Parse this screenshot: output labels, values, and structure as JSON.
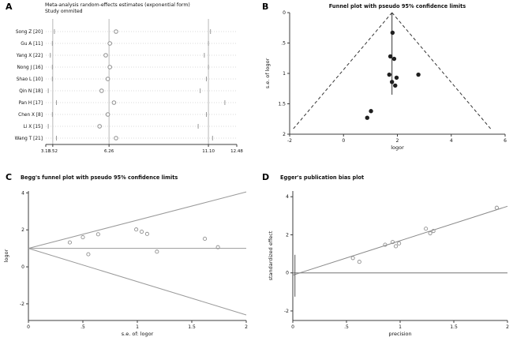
{
  "figure": {
    "background": "#ffffff",
    "axis_color": "#3c3c3c",
    "grid_gray": "#cfcfcf",
    "line_gray": "#9a9a9a"
  },
  "chart_data": [
    {
      "panel": "A",
      "type": "dotci",
      "title": "Meta-analysis random-effects estimates (exponential form)",
      "subtitle": "Study ommited",
      "categories": [
        "Song Z [20]",
        "Gu A [11]",
        "Yang X [22]",
        "Nong J [16]",
        "Shao L [10]",
        "Qin N [18]",
        "Pan H [17]",
        "Chen X [8]",
        "Li X [15]",
        "Wang T [21]"
      ],
      "estimates": [
        6.6,
        6.3,
        6.1,
        6.3,
        6.2,
        5.9,
        6.5,
        6.2,
        5.8,
        6.6
      ],
      "ci_low": [
        3.6,
        3.5,
        3.4,
        3.5,
        3.5,
        3.3,
        3.7,
        3.5,
        3.3,
        3.7
      ],
      "ci_high": [
        11.2,
        11.1,
        10.9,
        11.1,
        11.0,
        10.7,
        11.9,
        11.0,
        10.6,
        11.3
      ],
      "xlim": [
        3.18,
        12.48
      ],
      "xticks": {
        "values": [
          3.18,
          3.52,
          6.26,
          11.1,
          12.48
        ],
        "labels": [
          "3.18",
          "3.52",
          "6.26",
          "11.10",
          "12.48"
        ]
      },
      "ref_lines": [
        3.52,
        6.26,
        11.1
      ]
    },
    {
      "panel": "B",
      "type": "scatter",
      "title": "Funnel plot with pseudo 95% confidence limits",
      "xlabel": "logor",
      "ylabel": "s.e. of logor",
      "xlim": [
        -2,
        6
      ],
      "ylim": [
        0,
        2
      ],
      "xticks": {
        "values": [
          -2,
          0,
          2,
          4,
          6
        ],
        "labels": [
          "-2",
          "0",
          "2",
          "4",
          "6"
        ]
      },
      "yticks": {
        "values": [
          0,
          0.5,
          1,
          1.5,
          2
        ],
        "labels": [
          "0",
          ".5",
          "1",
          "1.5",
          "2"
        ]
      },
      "marker": "filled",
      "marker_r": 2.7,
      "marker_color": "#1f1f1f",
      "points": [
        [
          1.82,
          0.33
        ],
        [
          1.74,
          0.72
        ],
        [
          1.88,
          0.76
        ],
        [
          1.7,
          1.02
        ],
        [
          1.97,
          1.07
        ],
        [
          2.78,
          1.02
        ],
        [
          1.8,
          1.14
        ],
        [
          1.92,
          1.2
        ],
        [
          1.02,
          1.62
        ],
        [
          0.88,
          1.73
        ]
      ],
      "lines": [
        {
          "x1": 1.8,
          "y1": 0,
          "x2": -1.9,
          "y2": 1.93,
          "dash": "4,3",
          "color": "#333333",
          "w": 1
        },
        {
          "x1": 1.8,
          "y1": 0,
          "x2": 5.5,
          "y2": 1.93,
          "dash": "4,3",
          "color": "#333333",
          "w": 1
        },
        {
          "x1": 1.8,
          "y1": 0,
          "x2": 1.8,
          "y2": 1.35,
          "color": "#333333",
          "w": 1
        }
      ]
    },
    {
      "panel": "C",
      "type": "scatter",
      "title": "Begg's funnel plot with pseudo 95% confidence limits",
      "xlabel": "s.e. of: logor",
      "ylabel": "logor",
      "xlim": [
        0,
        2
      ],
      "ylim": [
        4.1,
        -2.9
      ],
      "xticks": {
        "values": [
          0,
          0.5,
          1,
          1.5,
          2
        ],
        "labels": [
          "0",
          ".5",
          "1",
          "1.5",
          "2"
        ]
      },
      "yticks": {
        "values": [
          4,
          2,
          0,
          -2
        ],
        "labels": [
          "4",
          "2",
          "0",
          "-2"
        ]
      },
      "marker": "open",
      "marker_r": 2.1,
      "marker_color": "#8f8f8f",
      "points": [
        [
          0.38,
          1.32
        ],
        [
          0.5,
          1.6
        ],
        [
          0.55,
          0.68
        ],
        [
          0.64,
          1.76
        ],
        [
          0.99,
          2.02
        ],
        [
          1.04,
          1.9
        ],
        [
          1.09,
          1.78
        ],
        [
          1.18,
          0.82
        ],
        [
          1.62,
          1.52
        ],
        [
          1.74,
          1.06
        ]
      ],
      "lines": [
        {
          "x1": 0,
          "y1": 1.0,
          "x2": 2,
          "y2": 1.0,
          "color": "#9a9a9a",
          "w": 1
        },
        {
          "x1": 0,
          "y1": 1.0,
          "x2": 2,
          "y2": 4.05,
          "color": "#9a9a9a",
          "w": 1
        },
        {
          "x1": 0,
          "y1": 1.0,
          "x2": 2,
          "y2": -2.6,
          "color": "#9a9a9a",
          "w": 1
        }
      ]
    },
    {
      "panel": "D",
      "type": "scatter",
      "title": "Egger's publication bias plot",
      "xlabel": "precision",
      "ylabel": "standardized effect",
      "xlim": [
        0,
        2
      ],
      "ylim": [
        4.3,
        -2.5
      ],
      "xticks": {
        "values": [
          0,
          0.5,
          1,
          1.5,
          2
        ],
        "labels": [
          "0",
          ".5",
          "1",
          "1.5",
          "2"
        ]
      },
      "yticks": {
        "values": [
          4,
          2,
          0,
          -2
        ],
        "labels": [
          "4",
          "2",
          "0",
          "-2"
        ]
      },
      "marker": "open",
      "marker_r": 2.1,
      "marker_color": "#8f8f8f",
      "points": [
        [
          0.56,
          0.78
        ],
        [
          0.62,
          0.58
        ],
        [
          0.86,
          1.48
        ],
        [
          0.93,
          1.62
        ],
        [
          0.96,
          1.4
        ],
        [
          0.99,
          1.55
        ],
        [
          1.24,
          2.32
        ],
        [
          1.28,
          2.08
        ],
        [
          1.31,
          2.2
        ],
        [
          1.9,
          3.42
        ]
      ],
      "lines": [
        {
          "x1": 0,
          "y1": 0,
          "x2": 2,
          "y2": 0,
          "color": "#777777",
          "w": 1
        },
        {
          "x1": 0,
          "y1": -0.12,
          "x2": 2,
          "y2": 3.5,
          "color": "#8a8a8a",
          "w": 1
        },
        {
          "x1": 0.02,
          "y1": -1.25,
          "x2": 0.02,
          "y2": 0.95,
          "color": "#555555",
          "w": 1
        }
      ]
    }
  ]
}
